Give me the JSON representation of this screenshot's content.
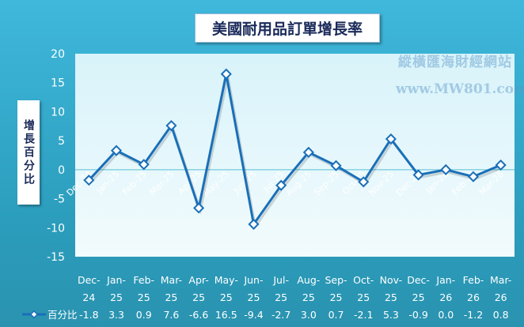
{
  "chart_data": {
    "type": "line",
    "title": "美國耐用品訂單增長率",
    "ylabel": "增長百分比",
    "categories": [
      "Dec-24",
      "Jan-25",
      "Feb-25",
      "Mar-25",
      "Apr-25",
      "May-25",
      "Jun-25",
      "Jul-25",
      "Aug-25",
      "Sep-25",
      "Oct-25",
      "Nov-25",
      "Dec-25",
      "Jan-26",
      "Feb-26",
      "Mar-26"
    ],
    "series": [
      {
        "name": "百分比",
        "values": [
          -1.8,
          3.3,
          0.9,
          7.6,
          -6.6,
          16.5,
          -9.4,
          -2.7,
          3.0,
          0.7,
          -2.1,
          5.3,
          -0.9,
          0.0,
          -1.2,
          0.8
        ]
      }
    ],
    "value_labels": [
      "-1.8",
      "3.3",
      "0.9",
      "7.6",
      "-6.6",
      "16.5",
      "-9.4",
      "-2.7",
      "3.0",
      "0.7",
      "-2.1",
      "5.3",
      "-0.9",
      "0.0",
      "-1.2",
      "0.8"
    ],
    "ylim": [
      -15,
      20
    ],
    "yticks": [
      20,
      15,
      10,
      5,
      0,
      -5,
      -10,
      -15
    ],
    "grid": false,
    "legend": "bottom-left data table",
    "colors": {
      "line": "#1a6fb8",
      "background": "#2b9cbb",
      "plot": "#e8f8fc"
    }
  },
  "watermark": {
    "name": "縱橫匯海財經網站",
    "url": "www.MW801.com"
  }
}
